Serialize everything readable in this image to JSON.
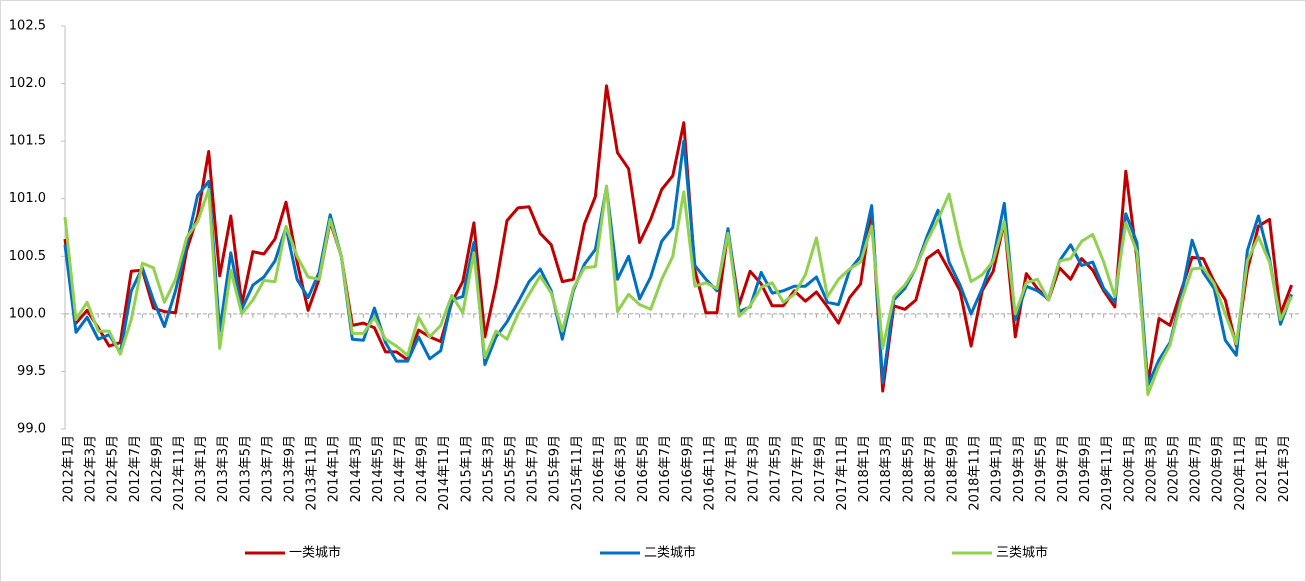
{
  "chart_data": {
    "type": "line",
    "categories": [
      "2012年1月",
      null,
      "2012年3月",
      null,
      "2012年5月",
      null,
      "2012年7月",
      null,
      "2012年9月",
      null,
      "2012年11月",
      null,
      "2013年1月",
      null,
      "2013年3月",
      null,
      "2013年5月",
      null,
      "2013年7月",
      null,
      "2013年9月",
      null,
      "2013年11月",
      null,
      "2014年1月",
      null,
      "2014年3月",
      null,
      "2014年5月",
      null,
      "2014年7月",
      null,
      "2014年9月",
      null,
      "2014年11月",
      null,
      "2015年1月",
      null,
      "2015年3月",
      null,
      "2015年5月",
      null,
      "2015年7月",
      null,
      "2015年9月",
      null,
      "2015年11月",
      null,
      "2016年1月",
      null,
      "2016年3月",
      null,
      "2016年5月",
      null,
      "2016年7月",
      null,
      "2016年9月",
      null,
      "2016年11月",
      null,
      "2017年1月",
      null,
      "2017年3月",
      null,
      "2017年5月",
      null,
      "2017年7月",
      null,
      "2017年9月",
      null,
      "2017年11月",
      null,
      "2018年1月",
      null,
      "2018年3月",
      null,
      "2018年5月",
      null,
      "2018年7月",
      null,
      "2018年9月",
      null,
      "2018年11月",
      null,
      "2019年1月",
      null,
      "2019年3月",
      null,
      "2019年5月",
      null,
      "2019年7月",
      null,
      "2019年9月",
      null,
      "2019年11月",
      null,
      "2020年1月",
      null,
      "2020年3月",
      null,
      "2020年5月",
      null,
      "2020年7月",
      null,
      "2020年9月",
      null,
      "2020年11月",
      null,
      "2021年1月",
      null,
      "2021年3月",
      null
    ],
    "series": [
      {
        "name": "一类城市",
        "color": "#c00000",
        "values": [
          100.65,
          99.92,
          100.03,
          99.88,
          99.72,
          99.75,
          100.37,
          100.38,
          100.05,
          100.02,
          100.01,
          100.55,
          100.85,
          101.41,
          100.33,
          100.85,
          100.08,
          100.54,
          100.52,
          100.65,
          100.97,
          100.45,
          100.03,
          100.3,
          100.8,
          100.5,
          99.9,
          99.92,
          99.88,
          99.67,
          99.67,
          99.6,
          99.86,
          99.8,
          99.76,
          100.1,
          100.28,
          100.79,
          99.8,
          100.25,
          100.81,
          100.92,
          100.93,
          100.7,
          100.6,
          100.28,
          100.3,
          100.78,
          101.02,
          101.98,
          101.4,
          101.26,
          100.62,
          100.82,
          101.08,
          101.2,
          101.66,
          100.38,
          100.01,
          100.01,
          100.72,
          100.08,
          100.37,
          100.26,
          100.07,
          100.07,
          100.2,
          100.11,
          100.19,
          100.06,
          99.92,
          100.14,
          100.26,
          100.92,
          99.33,
          100.07,
          100.04,
          100.12,
          100.48,
          100.55,
          100.38,
          100.2,
          99.72,
          100.2,
          100.37,
          100.8,
          99.8,
          100.35,
          100.22,
          100.12,
          100.4,
          100.3,
          100.48,
          100.38,
          100.2,
          100.06,
          101.24,
          100.48,
          99.4,
          99.96,
          99.9,
          100.2,
          100.49,
          100.48,
          100.28,
          100.12,
          99.72,
          100.38,
          100.76,
          100.82,
          100.0,
          100.25
        ]
      },
      {
        "name": "二类城市",
        "color": "#0070c0",
        "values": [
          100.6,
          99.84,
          99.97,
          99.78,
          99.82,
          99.66,
          100.2,
          100.4,
          100.12,
          99.89,
          100.2,
          100.6,
          101.03,
          101.15,
          99.85,
          100.53,
          100.04,
          100.25,
          100.32,
          100.46,
          100.75,
          100.3,
          100.14,
          100.36,
          100.86,
          100.5,
          99.78,
          99.77,
          100.05,
          99.75,
          99.59,
          99.59,
          99.8,
          99.61,
          99.68,
          100.12,
          100.15,
          100.62,
          99.56,
          99.8,
          99.93,
          100.1,
          100.28,
          100.39,
          100.2,
          99.78,
          100.2,
          100.43,
          100.56,
          101.1,
          100.3,
          100.5,
          100.13,
          100.32,
          100.63,
          100.75,
          101.5,
          100.42,
          100.3,
          100.2,
          100.74,
          100.02,
          100.06,
          100.36,
          100.18,
          100.2,
          100.24,
          100.24,
          100.32,
          100.1,
          100.08,
          100.38,
          100.5,
          100.94,
          99.4,
          100.12,
          100.22,
          100.4,
          100.67,
          100.9,
          100.45,
          100.25,
          100.0,
          100.22,
          100.48,
          100.96,
          99.95,
          100.24,
          100.2,
          100.13,
          100.46,
          100.6,
          100.42,
          100.45,
          100.22,
          100.1,
          100.87,
          100.62,
          99.38,
          99.6,
          99.75,
          100.15,
          100.64,
          100.36,
          100.22,
          99.77,
          99.64,
          100.55,
          100.85,
          100.48,
          99.91,
          100.17
        ]
      },
      {
        "name": "三类城市",
        "color": "#92d050",
        "values": [
          100.84,
          99.95,
          100.1,
          99.85,
          99.85,
          99.65,
          99.95,
          100.44,
          100.4,
          100.1,
          100.3,
          100.66,
          100.8,
          101.08,
          99.7,
          100.38,
          100.0,
          100.12,
          100.29,
          100.28,
          100.76,
          100.5,
          100.32,
          100.3,
          100.82,
          100.5,
          99.83,
          99.83,
          99.97,
          99.78,
          99.72,
          99.64,
          99.97,
          99.8,
          99.9,
          100.16,
          100.01,
          100.53,
          99.62,
          99.85,
          99.78,
          100.0,
          100.17,
          100.33,
          100.18,
          99.85,
          100.22,
          100.4,
          100.41,
          101.11,
          100.02,
          100.17,
          100.08,
          100.04,
          100.3,
          100.5,
          101.06,
          100.24,
          100.27,
          100.22,
          100.7,
          99.98,
          100.07,
          100.23,
          100.27,
          100.1,
          100.17,
          100.34,
          100.66,
          100.15,
          100.3,
          100.39,
          100.45,
          100.76,
          99.7,
          100.15,
          100.25,
          100.4,
          100.63,
          100.82,
          101.04,
          100.6,
          100.28,
          100.34,
          100.46,
          100.8,
          100.0,
          100.27,
          100.3,
          100.12,
          100.46,
          100.48,
          100.63,
          100.69,
          100.45,
          100.15,
          100.79,
          100.54,
          99.3,
          99.55,
          99.73,
          100.11,
          100.39,
          100.4,
          100.26,
          100.0,
          99.74,
          100.46,
          100.67,
          100.45,
          99.95,
          100.15
        ]
      }
    ],
    "ylim": [
      99,
      102.5
    ],
    "yticks": [
      {
        "value": 99,
        "label": "99.0"
      },
      99.5,
      {
        "value": 100,
        "label": "100.0"
      },
      100.5,
      {
        "value": 101,
        "label": "101.0"
      },
      101.5,
      {
        "value": 102,
        "label": "102.0"
      },
      102.5
    ],
    "grid": false,
    "legend": "bottom"
  }
}
